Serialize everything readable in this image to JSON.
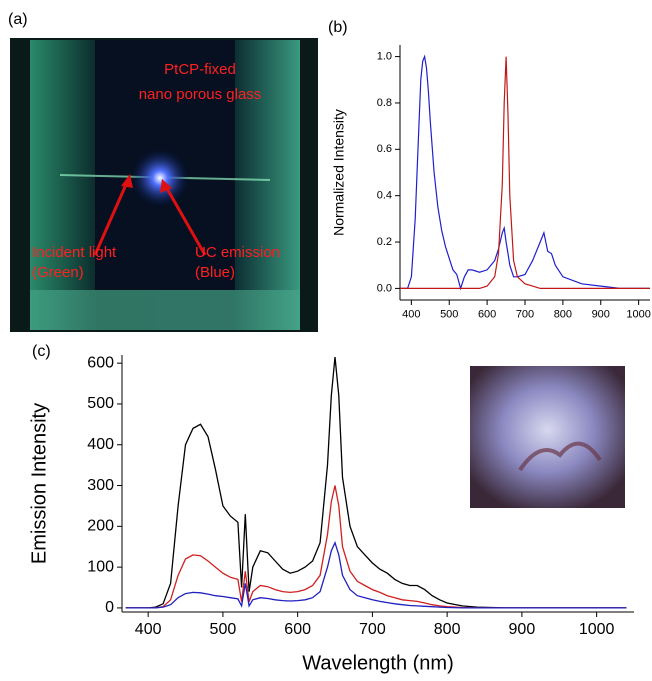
{
  "panels": {
    "a": "(a)",
    "b": "(b)",
    "c": "(c)"
  },
  "photo": {
    "caption": [
      "PtCP-fixed",
      "nano porous glass"
    ],
    "label_left": [
      "Incident light",
      "(Green)"
    ],
    "label_right": [
      "UC emission",
      "(Blue)"
    ]
  },
  "chart_data": [
    {
      "type": "line",
      "ylabel": "Normalized Intensity",
      "x": [
        370,
        380,
        390,
        400,
        410,
        420,
        425,
        430,
        435,
        440,
        445,
        450,
        460,
        470,
        480,
        490,
        500,
        510,
        520,
        530,
        540,
        550,
        560,
        580,
        600,
        620,
        630,
        640,
        645,
        650,
        655,
        660,
        670,
        680,
        700,
        720,
        740,
        750,
        760,
        770,
        780,
        800,
        850,
        900,
        950,
        1000,
        1030
      ],
      "series": [
        {
          "color": "#1f1fd0",
          "values": [
            0,
            0,
            0,
            0.05,
            0.3,
            0.7,
            0.9,
            0.98,
            1.0,
            0.95,
            0.85,
            0.72,
            0.5,
            0.35,
            0.25,
            0.18,
            0.13,
            0.08,
            0.06,
            0.0,
            0.05,
            0.08,
            0.08,
            0.07,
            0.08,
            0.12,
            0.17,
            0.24,
            0.26,
            0.2,
            0.15,
            0.1,
            0.05,
            0.05,
            0.06,
            0.12,
            0.2,
            0.24,
            0.16,
            0.15,
            0.1,
            0.05,
            0.02,
            0.01,
            0,
            0,
            0
          ]
        },
        {
          "color": "#c01818",
          "values": [
            0,
            0,
            0,
            0,
            0,
            0,
            0,
            0,
            0,
            0,
            0,
            0,
            0,
            0,
            0,
            0,
            0,
            0,
            0,
            0,
            0,
            0,
            0,
            0,
            0.01,
            0.05,
            0.15,
            0.45,
            0.8,
            1.0,
            0.75,
            0.4,
            0.12,
            0.05,
            0.02,
            0.01,
            0,
            0,
            0,
            0,
            0,
            0,
            0,
            0,
            0,
            0,
            0
          ]
        }
      ],
      "xlim": [
        370,
        1030
      ],
      "xticks": [
        400,
        500,
        600,
        700,
        800,
        900,
        1000
      ],
      "ylim": [
        -0.05,
        1.05
      ],
      "yticks": [
        {
          "value": 0,
          "label": "0.0"
        },
        {
          "value": 0.2,
          "label": "0.2"
        },
        {
          "value": 0.4,
          "label": "0.4"
        },
        {
          "value": 0.6,
          "label": "0.6"
        },
        {
          "value": 0.8,
          "label": "0.8"
        },
        {
          "value": 1,
          "label": "1.0"
        }
      ]
    },
    {
      "type": "line",
      "xlabel": "Wavelength (nm)",
      "ylabel": "Emission Intensity",
      "x": [
        370,
        380,
        390,
        400,
        410,
        420,
        430,
        440,
        450,
        460,
        470,
        480,
        490,
        500,
        510,
        520,
        525,
        530,
        535,
        540,
        550,
        560,
        570,
        580,
        590,
        600,
        610,
        620,
        630,
        640,
        645,
        650,
        655,
        660,
        670,
        680,
        690,
        700,
        710,
        720,
        730,
        740,
        750,
        760,
        770,
        780,
        790,
        800,
        820,
        840,
        860,
        880,
        900,
        950,
        1000,
        1040
      ],
      "series": [
        {
          "color": "#000000",
          "values": [
            0,
            0,
            0,
            0,
            2,
            10,
            60,
            250,
            400,
            440,
            450,
            420,
            340,
            250,
            225,
            210,
            50,
            230,
            40,
            100,
            140,
            135,
            115,
            95,
            85,
            90,
            100,
            115,
            160,
            350,
            520,
            615,
            520,
            320,
            200,
            150,
            130,
            110,
            95,
            85,
            70,
            60,
            55,
            55,
            45,
            30,
            20,
            12,
            5,
            2,
            1,
            0,
            0,
            0,
            0,
            0
          ]
        },
        {
          "color": "#d02020",
          "values": [
            0,
            0,
            0,
            0,
            0,
            3,
            20,
            80,
            120,
            130,
            128,
            115,
            100,
            85,
            75,
            70,
            15,
            90,
            15,
            40,
            55,
            52,
            45,
            40,
            38,
            40,
            45,
            55,
            80,
            180,
            260,
            300,
            250,
            150,
            90,
            65,
            55,
            45,
            38,
            30,
            25,
            20,
            18,
            16,
            12,
            8,
            5,
            3,
            1,
            0,
            0,
            0,
            0,
            0,
            0,
            0
          ]
        },
        {
          "color": "#2020c0",
          "values": [
            0,
            0,
            0,
            0,
            0,
            2,
            8,
            25,
            35,
            38,
            37,
            34,
            30,
            28,
            25,
            22,
            5,
            60,
            5,
            20,
            25,
            23,
            20,
            18,
            17,
            18,
            20,
            25,
            40,
            100,
            140,
            160,
            130,
            80,
            45,
            30,
            25,
            20,
            16,
            13,
            10,
            8,
            6,
            5,
            4,
            3,
            2,
            1,
            0,
            0,
            0,
            0,
            0,
            0,
            0,
            0
          ]
        }
      ],
      "xlim": [
        365,
        1050
      ],
      "xticks": [
        400,
        500,
        600,
        700,
        800,
        900,
        1000
      ],
      "ylim": [
        -10,
        620
      ],
      "yticks": [
        0,
        100,
        200,
        300,
        400,
        500,
        600
      ]
    }
  ]
}
